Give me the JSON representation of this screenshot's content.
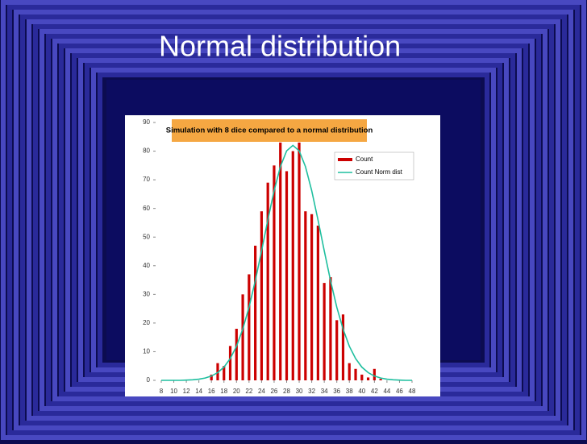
{
  "slide": {
    "title": "Normal distribution"
  },
  "chart_data": {
    "type": "bar-line",
    "title": "Simulation with 8 dice compared to a normal distribution",
    "x": [
      8,
      9,
      10,
      11,
      12,
      13,
      14,
      15,
      16,
      17,
      18,
      19,
      20,
      21,
      22,
      23,
      24,
      25,
      26,
      27,
      28,
      29,
      30,
      31,
      32,
      33,
      34,
      35,
      36,
      37,
      38,
      39,
      40,
      41,
      42,
      43,
      44,
      45,
      46,
      47,
      48
    ],
    "series": [
      {
        "name": "Count",
        "color": "#cc0000",
        "kind": "bar",
        "values": [
          0,
          0,
          0,
          0,
          0,
          0,
          0,
          0,
          2,
          6,
          5,
          12,
          18,
          30,
          37,
          47,
          59,
          69,
          75,
          83,
          73,
          80,
          83,
          59,
          58,
          54,
          34,
          36,
          21,
          23,
          6,
          4,
          2,
          1,
          4,
          0.5,
          0,
          0,
          0,
          0,
          0
        ]
      },
      {
        "name": "Count Norm dist",
        "color": "#1fbf9f",
        "kind": "line",
        "values": [
          0,
          0,
          0,
          0,
          0.1,
          0.2,
          0.4,
          0.8,
          1.5,
          2.7,
          4.6,
          7.6,
          11.9,
          17.9,
          25.5,
          34.8,
          45.2,
          56.0,
          66.2,
          74.6,
          80.1,
          82,
          80.1,
          74.6,
          66.2,
          56.0,
          45.2,
          34.8,
          25.5,
          17.9,
          11.9,
          7.6,
          4.6,
          2.7,
          1.5,
          0.8,
          0.4,
          0.2,
          0.1,
          0,
          0
        ]
      }
    ],
    "xlim": [
      8,
      48
    ],
    "xticks": [
      8,
      10,
      12,
      14,
      16,
      18,
      20,
      22,
      24,
      26,
      28,
      30,
      32,
      34,
      36,
      38,
      40,
      42,
      44,
      46,
      48
    ],
    "ylim": [
      0,
      90
    ],
    "yticks": [
      0,
      10,
      20,
      30,
      40,
      50,
      60,
      70,
      80,
      90
    ]
  }
}
